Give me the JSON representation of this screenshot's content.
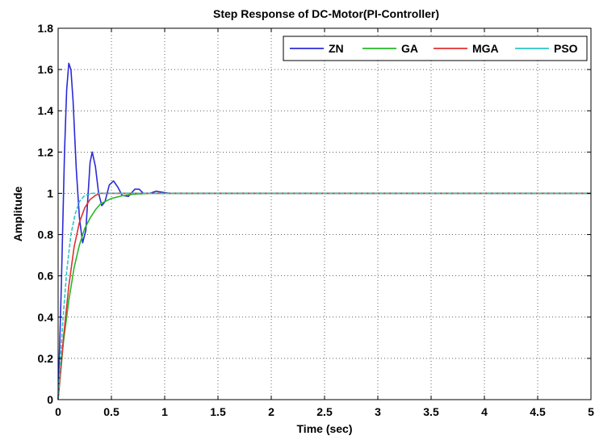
{
  "chart_data": {
    "type": "line",
    "title": "Step Response of DC-Motor(PI-Controller)",
    "xlabel": "Time (sec)",
    "ylabel": "Amplitude",
    "xlim": [
      0,
      5
    ],
    "ylim": [
      0,
      1.8
    ],
    "xticks": [
      "0",
      "0.5",
      "1",
      "1.5",
      "2",
      "2.5",
      "3",
      "3.5",
      "4",
      "4.5",
      "5"
    ],
    "yticks": [
      "0",
      "0.2",
      "0.4",
      "0.6",
      "0.8",
      "1",
      "1.2",
      "1.4",
      "1.6",
      "1.8"
    ],
    "grid": true,
    "legend_position": "top-right",
    "colors": {
      "ZN": "#2b2bd6",
      "GA": "#25b925",
      "MGA": "#e03030",
      "PSO": "#2cc6c6"
    },
    "series": [
      {
        "name": "ZN",
        "x": [
          0,
          0.03,
          0.06,
          0.08,
          0.1,
          0.12,
          0.14,
          0.17,
          0.2,
          0.23,
          0.26,
          0.3,
          0.32,
          0.35,
          0.38,
          0.41,
          0.44,
          0.48,
          0.52,
          0.56,
          0.6,
          0.66,
          0.72,
          0.76,
          0.8,
          0.86,
          0.92,
          0.98,
          1.05,
          1.2,
          2.0,
          3.0,
          4.0,
          5.0
        ],
        "y": [
          0,
          0.55,
          1.2,
          1.5,
          1.63,
          1.6,
          1.45,
          1.12,
          0.88,
          0.76,
          0.82,
          1.15,
          1.2,
          1.13,
          1.0,
          0.94,
          0.96,
          1.04,
          1.06,
          1.03,
          0.99,
          0.985,
          1.02,
          1.02,
          1.0,
          1.0,
          1.01,
          1.005,
          1.0,
          1.0,
          1.0,
          1.0,
          1.0,
          1.0
        ]
      },
      {
        "name": "GA",
        "x": [
          0,
          0.05,
          0.1,
          0.15,
          0.2,
          0.25,
          0.3,
          0.35,
          0.4,
          0.5,
          0.6,
          0.7,
          0.8,
          0.9,
          1.0,
          1.2,
          2.0,
          3.0,
          4.0,
          5.0
        ],
        "y": [
          0,
          0.28,
          0.48,
          0.64,
          0.75,
          0.83,
          0.88,
          0.92,
          0.95,
          0.975,
          0.988,
          0.995,
          0.998,
          1.0,
          1.0,
          1.0,
          1.0,
          1.0,
          1.0,
          1.0
        ]
      },
      {
        "name": "MGA",
        "x": [
          0,
          0.05,
          0.1,
          0.15,
          0.2,
          0.25,
          0.3,
          0.35,
          0.4,
          0.45,
          0.5,
          0.6,
          0.8,
          1.0,
          2.0,
          3.0,
          4.0,
          5.0
        ],
        "y": [
          0,
          0.3,
          0.55,
          0.74,
          0.86,
          0.93,
          0.97,
          0.99,
          1.0,
          1.0,
          1.0,
          1.0,
          1.0,
          1.0,
          1.0,
          1.0,
          1.0,
          1.0
        ]
      },
      {
        "name": "PSO",
        "x": [
          0,
          0.04,
          0.08,
          0.12,
          0.16,
          0.2,
          0.24,
          0.28,
          0.32,
          0.36,
          0.4,
          0.5,
          0.7,
          1.0,
          2.0,
          3.0,
          4.0,
          5.0
        ],
        "y": [
          0,
          0.35,
          0.62,
          0.8,
          0.9,
          0.96,
          0.985,
          0.995,
          1.0,
          1.0,
          1.0,
          1.0,
          1.0,
          1.0,
          1.0,
          1.0,
          1.0,
          1.0
        ]
      }
    ]
  }
}
